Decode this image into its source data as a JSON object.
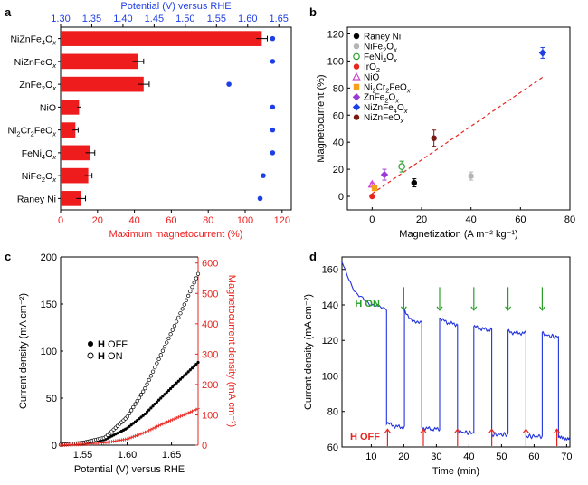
{
  "chart_data": [
    {
      "panel": "a",
      "type": "bar",
      "orientation": "horizontal",
      "categories": [
        "NiZnFe4Ox",
        "NiZnFeOx",
        "ZnFe2Ox",
        "NiO",
        "Ni2Cr2FeOx",
        "FeNi4Ox",
        "NiFe2Ox",
        "Raney Ni"
      ],
      "category_labels": [
        {
          "base": "NiZnFe",
          "sub": "4",
          "mid": "O",
          "sub2": "x"
        },
        {
          "base": "NiZnFeO",
          "sub": "x",
          "mid": "",
          "sub2": ""
        },
        {
          "base": "ZnFe",
          "sub": "2",
          "mid": "O",
          "sub2": "x"
        },
        {
          "base": "NiO",
          "sub": "",
          "mid": "",
          "sub2": ""
        },
        {
          "base": "Ni",
          "sub": "2",
          "mid": "Cr",
          "sub2": "2",
          "tail": "FeO",
          "sub3": "x"
        },
        {
          "base": "FeNi",
          "sub": "4",
          "mid": "O",
          "sub2": "x"
        },
        {
          "base": "NiFe",
          "sub": "2",
          "mid": "O",
          "sub2": "x"
        },
        {
          "base": "Raney Ni",
          "sub": "",
          "mid": "",
          "sub2": ""
        }
      ],
      "values": [
        109,
        42,
        45,
        10,
        8,
        16,
        15,
        11
      ],
      "errors": [
        3,
        3,
        3,
        1,
        1.5,
        2.5,
        2,
        2.5
      ],
      "potential_points": [
        1.64,
        1.64,
        1.57,
        1.64,
        1.64,
        1.64,
        1.625,
        1.62
      ],
      "xlabel": "Maximum magnetocurrent (%)",
      "xlim": [
        0,
        125
      ],
      "xticks": [
        "0",
        "20",
        "40",
        "60",
        "80",
        "100",
        "120"
      ],
      "top_xlabel": "Potential (V) versus RHE",
      "top_xlim": [
        1.3,
        1.67
      ],
      "top_xticks": [
        "1.30",
        "1.35",
        "1.40",
        "1.45",
        "1.50",
        "1.55",
        "1.60",
        "1.65"
      ],
      "bar_color": "#ee1c1c",
      "point_color": "#1f3fe6"
    },
    {
      "panel": "b",
      "type": "scatter",
      "xlabel": "Magnetization (A m⁻² kg⁻¹)",
      "ylabel": "Magnetocurrent (%)",
      "xlim": [
        -10,
        80
      ],
      "ylim": [
        -10,
        125
      ],
      "xticks": [
        "0",
        "20",
        "40",
        "60",
        "80"
      ],
      "yticks": [
        "0",
        "20",
        "40",
        "60",
        "80",
        "100",
        "120"
      ],
      "series": [
        {
          "name": "Raney Ni",
          "x": 17,
          "y": 10,
          "err": 3,
          "color": "#000000",
          "marker": "circle"
        },
        {
          "name": "NiFe2Ox",
          "x": 40,
          "y": 15,
          "err": 3,
          "color": "#b5b5b5",
          "marker": "circle"
        },
        {
          "name": "FeNi4Ox",
          "x": 12,
          "y": 22,
          "err": 4,
          "color": "#2aa02a",
          "marker": "circle-open"
        },
        {
          "name": "IrO2",
          "x": 0,
          "y": 0,
          "err": 0,
          "color": "#e8251f",
          "marker": "circle"
        },
        {
          "name": "NiO",
          "x": 0,
          "y": 9,
          "err": 1,
          "color": "#cc44cc",
          "marker": "triangle-open"
        },
        {
          "name": "Ni2Cr2FeOx",
          "x": 1,
          "y": 6,
          "err": 1,
          "color": "#f5a11c",
          "marker": "square"
        },
        {
          "name": "ZnFe2Ox",
          "x": 5,
          "y": 16,
          "err": 4,
          "color": "#9a39d4",
          "marker": "diamond"
        },
        {
          "name": "NiZnFe4Ox",
          "x": 69,
          "y": 106,
          "err": 4,
          "color": "#1f3fe6",
          "marker": "diamond"
        },
        {
          "name": "NiZnFeOx",
          "x": 25,
          "y": 43,
          "err": 6,
          "color": "#7a1a12",
          "marker": "circle"
        }
      ],
      "legend_labels": [
        {
          "base": "Raney Ni"
        },
        {
          "base": "NiFe",
          "sub": "2",
          "mid": "O",
          "sub2": "x"
        },
        {
          "base": "FeNi",
          "sub": "4",
          "mid": "O",
          "sub2": "x"
        },
        {
          "base": "IrO",
          "sub": "2"
        },
        {
          "base": "NiO"
        },
        {
          "base": "Ni",
          "sub": "2",
          "mid": "Cr",
          "sub2": "2",
          "tail": "FeO",
          "sub3": "x"
        },
        {
          "base": "ZnFe",
          "sub": "2",
          "mid": "O",
          "sub2": "x"
        },
        {
          "base": "NiZnFe",
          "sub": "4",
          "mid": "O",
          "sub2": "x"
        },
        {
          "base": "NiZnFeO",
          "sub": "x"
        }
      ],
      "fit_line": {
        "x": [
          0,
          69
        ],
        "y": [
          2,
          88
        ],
        "color": "#e8251f",
        "style": "dashed"
      },
      "legend_position": "top-left"
    },
    {
      "panel": "c",
      "type": "line",
      "xlabel": "Potential (V) versus RHE",
      "ylabel": "Current density (mA cm⁻²)",
      "ylabel_right": "Magnetocurrent density (mA cm⁻²)",
      "xlim": [
        1.525,
        1.68
      ],
      "ylim": [
        0,
        200
      ],
      "ylim_right": [
        0,
        620
      ],
      "xticks": [
        "1.55",
        "1.60",
        "1.65"
      ],
      "yticks": [
        "0",
        "50",
        "100",
        "150",
        "200"
      ],
      "yticks_right": [
        "0",
        "100",
        "200",
        "300",
        "400",
        "500",
        "600"
      ],
      "series": [
        {
          "name": "H OFF",
          "x": [
            1.525,
            1.55,
            1.575,
            1.6,
            1.62,
            1.64,
            1.66,
            1.68
          ],
          "values": [
            0.5,
            2,
            6,
            18,
            33,
            52,
            70,
            88
          ],
          "marker": "filled"
        },
        {
          "name": "H ON",
          "x": [
            1.525,
            1.55,
            1.575,
            1.6,
            1.62,
            1.64,
            1.66,
            1.68
          ],
          "values": [
            0.5,
            2.5,
            8,
            30,
            60,
            100,
            140,
            182
          ],
          "marker": "open"
        },
        {
          "name": "Magnetocurrent",
          "axis": "right",
          "x": [
            1.525,
            1.55,
            1.575,
            1.6,
            1.62,
            1.64,
            1.66,
            1.68
          ],
          "values": [
            0,
            3,
            8,
            20,
            42,
            70,
            95,
            120
          ],
          "color": "#e8251f",
          "marker": "plus"
        }
      ],
      "legend": [
        {
          "symbol": "filled",
          "bold": "H",
          "text": " OFF"
        },
        {
          "symbol": "open",
          "bold": "H",
          "text": " ON"
        }
      ]
    },
    {
      "panel": "d",
      "type": "line",
      "xlabel": "Time (min)",
      "ylabel": "Current density (mA cm⁻²)",
      "xlim": [
        1,
        71
      ],
      "ylim": [
        60,
        167
      ],
      "xticks": [
        "10",
        "20",
        "30",
        "40",
        "50",
        "60",
        "70"
      ],
      "yticks": [
        "60",
        "80",
        "100",
        "120",
        "140",
        "160"
      ],
      "line_color": "#2233dd",
      "on_label": "H ON",
      "off_label": "H OFF",
      "on_arrows_x": [
        20,
        31,
        41.5,
        52,
        62.5
      ],
      "off_arrows_x": [
        15,
        26,
        36.5,
        47,
        57.5,
        67
      ],
      "segments": [
        {
          "state": "on",
          "t0": 1,
          "t1": 14.7,
          "v0": 165,
          "v1": 137
        },
        {
          "state": "off",
          "t0": 14.7,
          "t1": 20.2,
          "v0": 74,
          "v1": 71
        },
        {
          "state": "on",
          "t0": 20.2,
          "t1": 25.5,
          "v0": 137,
          "v1": 130
        },
        {
          "state": "off",
          "t0": 25.5,
          "t1": 31,
          "v0": 71,
          "v1": 70
        },
        {
          "state": "on",
          "t0": 31,
          "t1": 36.5,
          "v0": 133,
          "v1": 129
        },
        {
          "state": "off",
          "t0": 36.5,
          "t1": 41.5,
          "v0": 69,
          "v1": 68
        },
        {
          "state": "on",
          "t0": 41.5,
          "t1": 47,
          "v0": 128,
          "v1": 126
        },
        {
          "state": "off",
          "t0": 47,
          "t1": 52,
          "v0": 67,
          "v1": 67
        },
        {
          "state": "on",
          "t0": 52,
          "t1": 57.5,
          "v0": 125,
          "v1": 124
        },
        {
          "state": "off",
          "t0": 57.5,
          "t1": 62.5,
          "v0": 66,
          "v1": 66
        },
        {
          "state": "on",
          "t0": 62.5,
          "t1": 67.5,
          "v0": 124,
          "v1": 122
        },
        {
          "state": "off",
          "t0": 67.5,
          "t1": 71,
          "v0": 65,
          "v1": 65
        }
      ]
    }
  ],
  "panel_labels": [
    "a",
    "b",
    "c",
    "d"
  ],
  "colors": {
    "red": "#ee1c1c",
    "blue": "#1f3fe6",
    "green": "#2aa02a"
  }
}
